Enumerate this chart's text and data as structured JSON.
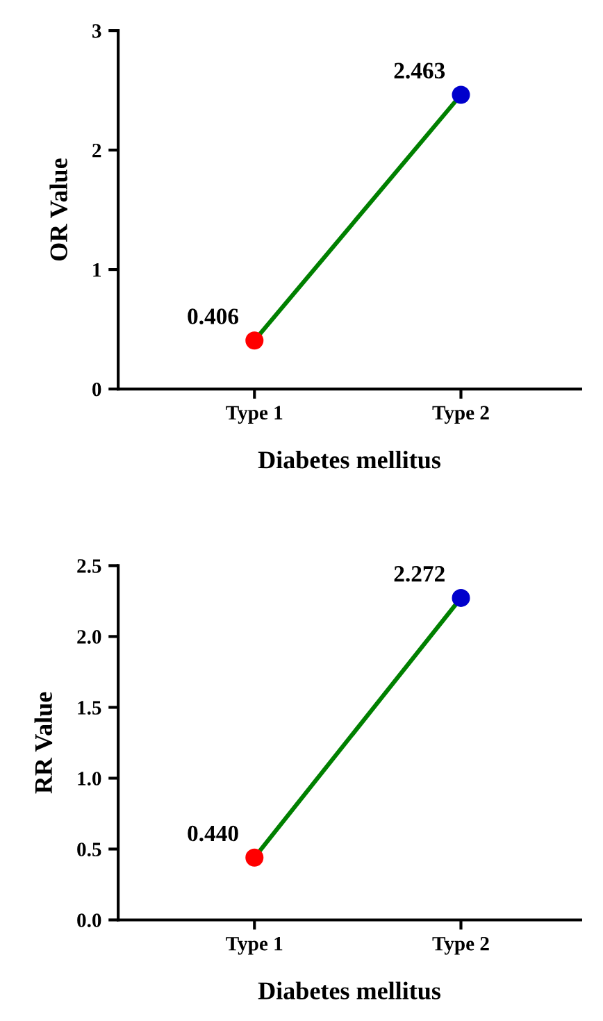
{
  "chart_data": [
    {
      "type": "line",
      "categories": [
        "Type 1",
        "Type 2"
      ],
      "xlabel": "Diabetes mellitus",
      "ylabel": "OR Value",
      "ylim": [
        0,
        3
      ],
      "yticks": [
        0,
        1,
        2,
        3
      ],
      "marker": "circle",
      "series": [
        {
          "color": "#008000",
          "colors": [
            "#ff0000",
            "#0000cc"
          ],
          "values": [
            0.406,
            2.463
          ],
          "value_labels": [
            "0.406",
            "2.463"
          ]
        }
      ]
    },
    {
      "type": "line",
      "categories": [
        "Type 1",
        "Type 2"
      ],
      "xlabel": "Diabetes mellitus",
      "ylabel": "RR Value",
      "ylim": [
        0,
        2.5
      ],
      "yticks": [
        {
          "value": 0,
          "label": "0.0"
        },
        {
          "value": 0.5,
          "label": "0.5"
        },
        {
          "value": 1,
          "label": "1.0"
        },
        {
          "value": 1.5,
          "label": "1.5"
        },
        {
          "value": 2,
          "label": "2.0"
        },
        {
          "value": 2.5,
          "label": "2.5"
        }
      ],
      "marker": "circle",
      "series": [
        {
          "color": "#008000",
          "colors": [
            "#ff0000",
            "#0000cc"
          ],
          "values": [
            0.44,
            2.272
          ],
          "value_labels": [
            "0.440",
            "2.272"
          ]
        }
      ]
    }
  ]
}
